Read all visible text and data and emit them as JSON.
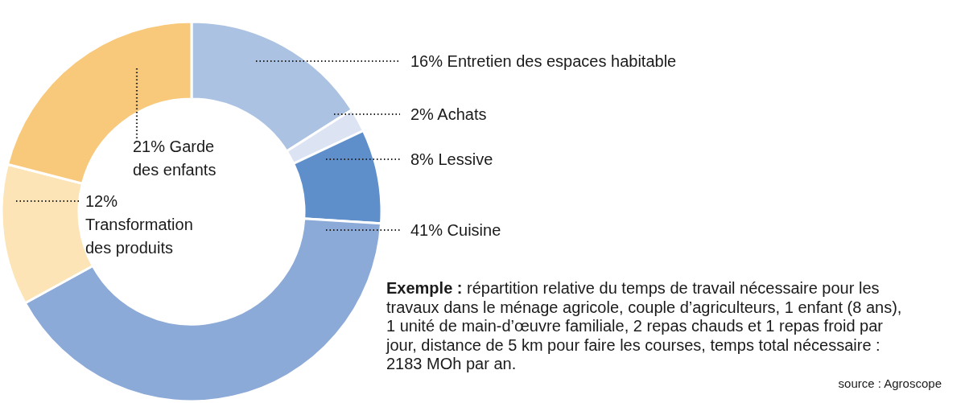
{
  "chart_data": {
    "type": "donut",
    "categories": [
      "Entretien des espaces habitable",
      "Achats",
      "Lessive",
      "Cuisine",
      "Transformation des produits",
      "Garde des enfants"
    ],
    "values": [
      16,
      2,
      8,
      41,
      12,
      21
    ],
    "value_labels": [
      "16%",
      "2%",
      "8%",
      "41%",
      "12%",
      "21%"
    ],
    "colors": [
      "#abc2e3",
      "#dce4f4",
      "#5e8fca",
      "#8caad8",
      "#fde4b6",
      "#f8c97b"
    ],
    "annotations": [
      "Exemple : répartition relative du temps de travail nécessaire pour les travaux dans le ménage agricole, couple d’agriculteurs, 1 enfant (8 ans), 1 unité de main-d’œuvre familiale, 2 repas chauds et 1 repas froid par jour, distance de 5 km pour faire les courses, temps total nécessaire : 2183 MOh par an.",
      "source : Agroscope"
    ]
  }
}
